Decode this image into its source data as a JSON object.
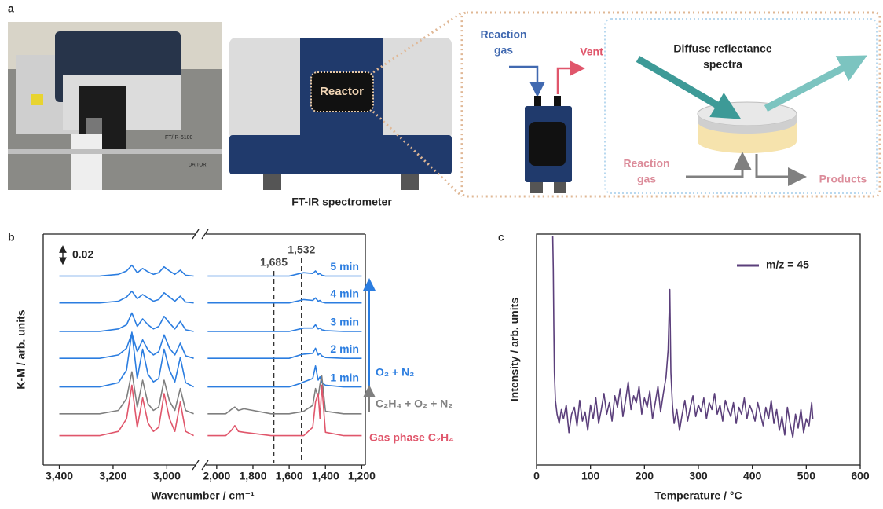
{
  "panels": [
    "a",
    "b",
    "c"
  ],
  "photo": {
    "texts": [
      "FT/IR-6100",
      "DAITOR"
    ]
  },
  "diagram": {
    "reactor": "Reactor",
    "spectrometer": "FT-IR spectrometer",
    "reaction_gas_in": [
      "Reaction",
      "gas"
    ],
    "vent": "Vent",
    "diffuse": [
      "Diffuse reflectance",
      "spectra"
    ],
    "reaction_gas_cell": [
      "Reaction",
      "gas"
    ],
    "products": "Products"
  },
  "chart_data": [
    {
      "type": "line",
      "xlabel": "Wavenumber / cm⁻¹",
      "ylabel": "K-M / arb. units",
      "ylim": [
        -0.035,
        0.24
      ],
      "scale_bar": 0.02,
      "arrow_label": "O₂ + N₂",
      "annotations": [
        {
          "value": 1685,
          "label": "1,685"
        },
        {
          "value": 1532,
          "label": "1,532"
        }
      ],
      "segments": [
        {
          "xlim": [
            3460,
            2890
          ],
          "xticks": [
            {
              "value": 3400,
              "label": "3,400"
            },
            {
              "value": 3200,
              "label": "3,200"
            },
            {
              "value": 3000,
              "label": "3,000"
            }
          ],
          "x": [
            3400,
            3250,
            3180,
            3150,
            3130,
            3110,
            3090,
            3070,
            3050,
            3030,
            3010,
            2990,
            2970,
            2950,
            2930,
            2900
          ]
        },
        {
          "xlim": [
            2060,
            1180
          ],
          "xticks": [
            {
              "value": 2000,
              "label": "2,000"
            },
            {
              "value": 1800,
              "label": "1,800"
            },
            {
              "value": 1600,
              "label": "1,600"
            },
            {
              "value": 1400,
              "label": "1,400"
            },
            {
              "value": 1200,
              "label": "1,200"
            }
          ],
          "x": [
            2050,
            1950,
            1920,
            1900,
            1880,
            1850,
            1700,
            1600,
            1540,
            1520,
            1470,
            1455,
            1440,
            1430,
            1420,
            1400,
            1300,
            1200
          ]
        }
      ],
      "series": [
        {
          "name": "5 min",
          "color": "#2b7de0",
          "values": [
            [
              0.19,
              0.19,
              0.192,
              0.196,
              0.203,
              0.194,
              0.199,
              0.195,
              0.192,
              0.194,
              0.201,
              0.196,
              0.192,
              0.197,
              0.191,
              0.19
            ],
            [
              0.19,
              0.19,
              0.19,
              0.19,
              0.19,
              0.19,
              0.19,
              0.19,
              0.193,
              0.194,
              0.193,
              0.196,
              0.192,
              0.193,
              0.191,
              0.19,
              0.19,
              0.19
            ]
          ]
        },
        {
          "name": "4 min",
          "color": "#2b7de0",
          "values": [
            [
              0.158,
              0.158,
              0.16,
              0.165,
              0.172,
              0.163,
              0.168,
              0.164,
              0.16,
              0.162,
              0.17,
              0.165,
              0.16,
              0.166,
              0.159,
              0.158
            ],
            [
              0.158,
              0.158,
              0.158,
              0.158,
              0.158,
              0.158,
              0.158,
              0.158,
              0.161,
              0.162,
              0.161,
              0.164,
              0.16,
              0.161,
              0.159,
              0.158,
              0.158,
              0.158
            ]
          ]
        },
        {
          "name": "3 min",
          "color": "#2b7de0",
          "values": [
            [
              0.124,
              0.124,
              0.127,
              0.132,
              0.146,
              0.13,
              0.139,
              0.132,
              0.127,
              0.13,
              0.142,
              0.134,
              0.127,
              0.136,
              0.126,
              0.124
            ],
            [
              0.124,
              0.124,
              0.124,
              0.124,
              0.124,
              0.124,
              0.124,
              0.124,
              0.127,
              0.128,
              0.128,
              0.132,
              0.127,
              0.128,
              0.126,
              0.125,
              0.124,
              0.124
            ]
          ]
        },
        {
          "name": "2 min",
          "color": "#2b7de0",
          "values": [
            [
              0.092,
              0.092,
              0.096,
              0.104,
              0.122,
              0.1,
              0.114,
              0.102,
              0.096,
              0.1,
              0.12,
              0.104,
              0.096,
              0.11,
              0.095,
              0.092
            ],
            [
              0.092,
              0.092,
              0.092,
              0.092,
              0.092,
              0.092,
              0.092,
              0.092,
              0.096,
              0.097,
              0.098,
              0.104,
              0.096,
              0.098,
              0.095,
              0.093,
              0.092,
              0.092
            ]
          ]
        },
        {
          "name": "1 min",
          "color": "#2b7de0",
          "values": [
            [
              0.058,
              0.058,
              0.063,
              0.078,
              0.123,
              0.068,
              0.103,
              0.073,
              0.064,
              0.068,
              0.103,
              0.078,
              0.064,
              0.093,
              0.063,
              0.058
            ],
            [
              0.058,
              0.058,
              0.058,
              0.058,
              0.058,
              0.058,
              0.058,
              0.058,
              0.062,
              0.064,
              0.068,
              0.083,
              0.066,
              0.07,
              0.063,
              0.06,
              0.058,
              0.058
            ]
          ]
        },
        {
          "name": "C₂H₄ + O₂ + N₂",
          "color": "#7f7f7f",
          "values": [
            [
              0.026,
              0.026,
              0.03,
              0.044,
              0.076,
              0.034,
              0.066,
              0.038,
              0.03,
              0.034,
              0.066,
              0.041,
              0.03,
              0.056,
              0.03,
              0.026
            ],
            [
              0.026,
              0.026,
              0.031,
              0.034,
              0.03,
              0.032,
              0.026,
              0.026,
              0.028,
              0.029,
              0.036,
              0.056,
              0.046,
              0.061,
              0.071,
              0.029,
              0.026,
              0.026
            ]
          ]
        },
        {
          "name": "Gas phase C₂H₄",
          "color": "#e0566b",
          "values": [
            [
              0,
              0,
              0.005,
              0.02,
              0.06,
              0.01,
              0.045,
              0.015,
              0.005,
              0.01,
              0.05,
              0.02,
              0.005,
              0.04,
              0.005,
              0
            ],
            [
              0,
              0,
              0.006,
              0.012,
              0.005,
              0.004,
              0,
              0,
              0,
              0,
              0.01,
              0.04,
              0.05,
              0.02,
              0.06,
              0.004,
              0,
              0
            ]
          ]
        }
      ]
    },
    {
      "type": "line",
      "xlabel": "Temperature / °C",
      "ylabel": "Intensity / arb. units",
      "xlim": [
        0,
        600
      ],
      "xticks": [
        0,
        100,
        200,
        300,
        400,
        500,
        600
      ],
      "ylim": [
        0,
        100
      ],
      "x": [
        30,
        31,
        32,
        33,
        35,
        38,
        42,
        46,
        50,
        55,
        60,
        65,
        70,
        75,
        80,
        85,
        90,
        95,
        100,
        105,
        110,
        115,
        120,
        125,
        130,
        135,
        140,
        145,
        150,
        155,
        160,
        165,
        170,
        175,
        180,
        185,
        190,
        195,
        200,
        205,
        210,
        215,
        220,
        225,
        230,
        235,
        240,
        244,
        247,
        249,
        252,
        255,
        260,
        265,
        270,
        275,
        280,
        285,
        290,
        295,
        300,
        305,
        310,
        315,
        320,
        325,
        330,
        335,
        340,
        345,
        350,
        355,
        360,
        365,
        370,
        375,
        380,
        385,
        390,
        395,
        400,
        405,
        410,
        415,
        420,
        425,
        430,
        435,
        440,
        445,
        450,
        455,
        460,
        465,
        470,
        475,
        480,
        485,
        490,
        495,
        500,
        505,
        510,
        512
      ],
      "series": [
        {
          "name": "m/z = 45",
          "color": "#5b3f7b",
          "values": [
            99,
            85,
            60,
            40,
            28,
            22,
            18,
            24,
            20,
            26,
            14,
            22,
            25,
            17,
            28,
            19,
            23,
            15,
            26,
            20,
            29,
            18,
            24,
            31,
            22,
            27,
            19,
            30,
            25,
            33,
            21,
            28,
            36,
            24,
            30,
            27,
            34,
            22,
            29,
            25,
            32,
            20,
            27,
            34,
            23,
            31,
            38,
            50,
            76,
            40,
            26,
            18,
            24,
            15,
            22,
            28,
            19,
            25,
            30,
            21,
            26,
            23,
            29,
            20,
            27,
            24,
            31,
            22,
            26,
            19,
            28,
            24,
            21,
            27,
            18,
            25,
            22,
            29,
            20,
            26,
            23,
            19,
            27,
            22,
            17,
            25,
            20,
            28,
            18,
            24,
            15,
            21,
            13,
            25,
            18,
            12,
            22,
            16,
            24,
            14,
            20,
            17,
            27,
            20
          ]
        }
      ]
    }
  ]
}
